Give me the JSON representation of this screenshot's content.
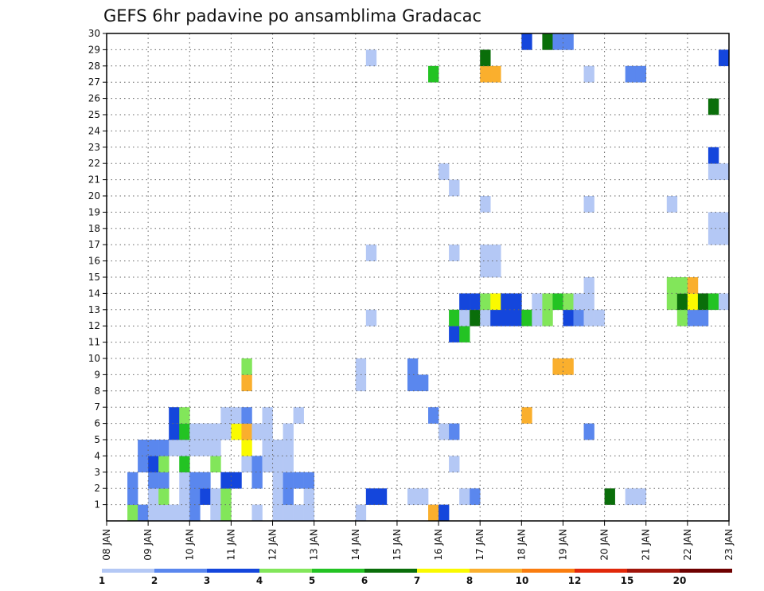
{
  "chart_data": {
    "type": "heatmap",
    "title": "GEFS 6hr padavine po ansamblima Gradacac",
    "xlabel": "",
    "ylabel": "",
    "x_tick_labels": [
      "08 JAN",
      "09 JAN",
      "10 JAN",
      "11 JAN",
      "12 JAN",
      "13 JAN",
      "14 JAN",
      "15 JAN",
      "16 JAN",
      "17 JAN",
      "18 JAN",
      "19 JAN",
      "20 JAN",
      "21 JAN",
      "22 JAN",
      "23 JAN"
    ],
    "y_tick_labels": [
      "1",
      "2",
      "3",
      "4",
      "5",
      "6",
      "7",
      "8",
      "9",
      "10",
      "11",
      "12",
      "13",
      "14",
      "15",
      "16",
      "17",
      "18",
      "19",
      "20",
      "21",
      "22",
      "23",
      "24",
      "25",
      "26",
      "27",
      "28",
      "29",
      "30"
    ],
    "x_unit": "6-hour step from 08 JAN 00z",
    "ylim": [
      0,
      30
    ],
    "grid": true,
    "legend": {
      "placement": "bottom",
      "labels": [
        "1",
        "2",
        "3",
        "4",
        "5",
        "6",
        "7",
        "8",
        "10",
        "12",
        "15",
        "20"
      ],
      "colors": [
        "#b4c8f5",
        "#5a87ee",
        "#1446dc",
        "#82e65a",
        "#23c323",
        "#0a6e0a",
        "#fafa00",
        "#faaf2d",
        "#fa7d0f",
        "#e1280a",
        "#a0140a",
        "#6e0000"
      ]
    },
    "cells": [
      [
        2,
        0,
        3
      ],
      [
        2,
        1,
        1
      ],
      [
        2,
        2,
        1
      ],
      [
        3,
        0,
        1
      ],
      [
        3,
        3,
        1
      ],
      [
        3,
        4,
        1
      ],
      [
        4,
        0,
        0
      ],
      [
        4,
        1,
        0
      ],
      [
        4,
        2,
        1
      ],
      [
        4,
        3,
        2
      ],
      [
        4,
        4,
        1
      ],
      [
        5,
        0,
        0
      ],
      [
        5,
        1,
        3
      ],
      [
        5,
        2,
        1
      ],
      [
        5,
        3,
        3
      ],
      [
        5,
        4,
        1
      ],
      [
        6,
        0,
        0
      ],
      [
        6,
        4,
        0
      ],
      [
        6,
        5,
        2
      ],
      [
        6,
        6,
        2
      ],
      [
        7,
        0,
        0
      ],
      [
        7,
        1,
        0
      ],
      [
        7,
        2,
        0
      ],
      [
        7,
        3,
        4
      ],
      [
        7,
        4,
        0
      ],
      [
        7,
        5,
        4
      ],
      [
        7,
        6,
        3
      ],
      [
        8,
        0,
        1
      ],
      [
        8,
        1,
        1
      ],
      [
        8,
        2,
        1
      ],
      [
        8,
        4,
        0
      ],
      [
        8,
        5,
        0
      ],
      [
        9,
        1,
        2
      ],
      [
        9,
        2,
        1
      ],
      [
        9,
        4,
        0
      ],
      [
        9,
        5,
        0
      ],
      [
        10,
        0,
        0
      ],
      [
        10,
        1,
        0
      ],
      [
        10,
        3,
        3
      ],
      [
        10,
        4,
        0
      ],
      [
        10,
        5,
        0
      ],
      [
        11,
        0,
        3
      ],
      [
        11,
        1,
        3
      ],
      [
        11,
        2,
        2
      ],
      [
        11,
        5,
        0
      ],
      [
        11,
        6,
        0
      ],
      [
        12,
        2,
        2
      ],
      [
        12,
        5,
        6
      ],
      [
        12,
        6,
        0
      ],
      [
        13,
        3,
        0
      ],
      [
        13,
        4,
        6
      ],
      [
        13,
        5,
        7
      ],
      [
        13,
        6,
        1
      ],
      [
        13,
        8,
        7
      ],
      [
        13,
        9,
        3
      ],
      [
        14,
        0,
        0
      ],
      [
        14,
        2,
        1
      ],
      [
        14,
        3,
        1
      ],
      [
        14,
        5,
        0
      ],
      [
        15,
        3,
        0
      ],
      [
        15,
        4,
        0
      ],
      [
        15,
        5,
        0
      ],
      [
        15,
        6,
        0
      ],
      [
        16,
        0,
        0
      ],
      [
        16,
        1,
        0
      ],
      [
        16,
        2,
        0
      ],
      [
        16,
        3,
        0
      ],
      [
        16,
        4,
        0
      ],
      [
        17,
        0,
        0
      ],
      [
        17,
        1,
        1
      ],
      [
        17,
        2,
        1
      ],
      [
        17,
        3,
        0
      ],
      [
        17,
        4,
        0
      ],
      [
        17,
        5,
        0
      ]
    ],
    "cell_note": "cells: [x_step, member_minus_1, legend_bin]; full field continues in script for remaining columns"
  }
}
